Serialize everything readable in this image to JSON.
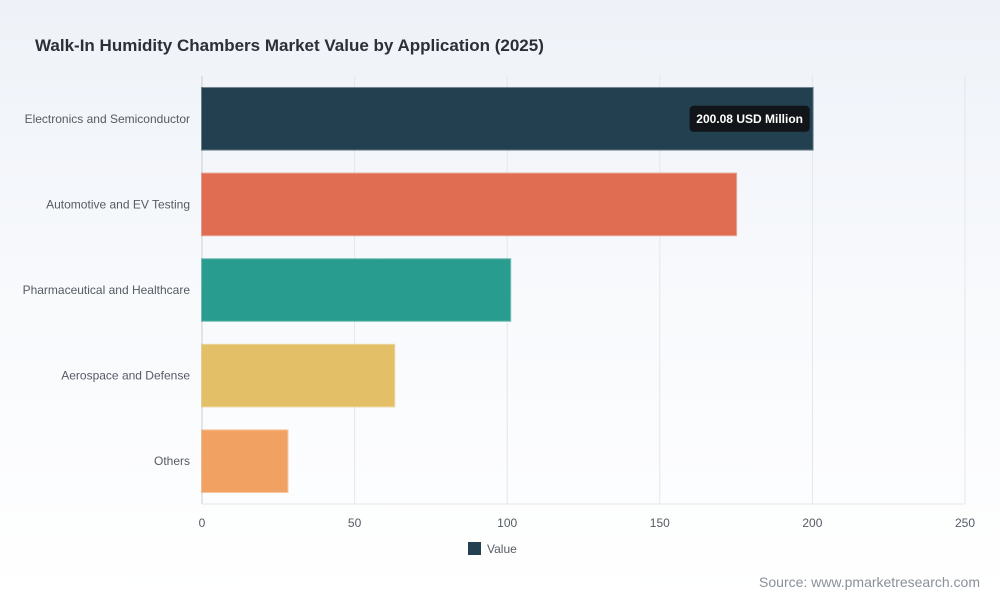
{
  "title": "Walk-In Humidity Chambers Market Value by Application (2025)",
  "source": "Source: www.pmarketresearch.com",
  "chart_data": {
    "type": "bar",
    "orientation": "horizontal",
    "categories": [
      "Electronics and Semiconductor",
      "Automotive and EV Testing",
      "Pharmaceutical and Healthcare",
      "Aerospace and Defense",
      "Others"
    ],
    "series": [
      {
        "name": "Value",
        "values": [
          200.08,
          175,
          101,
          63,
          28
        ]
      }
    ],
    "colors": [
      "#22404f",
      "#e06c52",
      "#289c8f",
      "#e3c067",
      "#f1a262"
    ],
    "xlim": [
      0,
      250
    ],
    "xticks": [
      0,
      50,
      100,
      150,
      200,
      250
    ],
    "xlabel": "",
    "ylabel": "",
    "grid": true,
    "legend": "bottom-center",
    "legend_color": "#22404f",
    "tooltip": {
      "category_index": 0,
      "text": "200.08 USD Million"
    }
  }
}
